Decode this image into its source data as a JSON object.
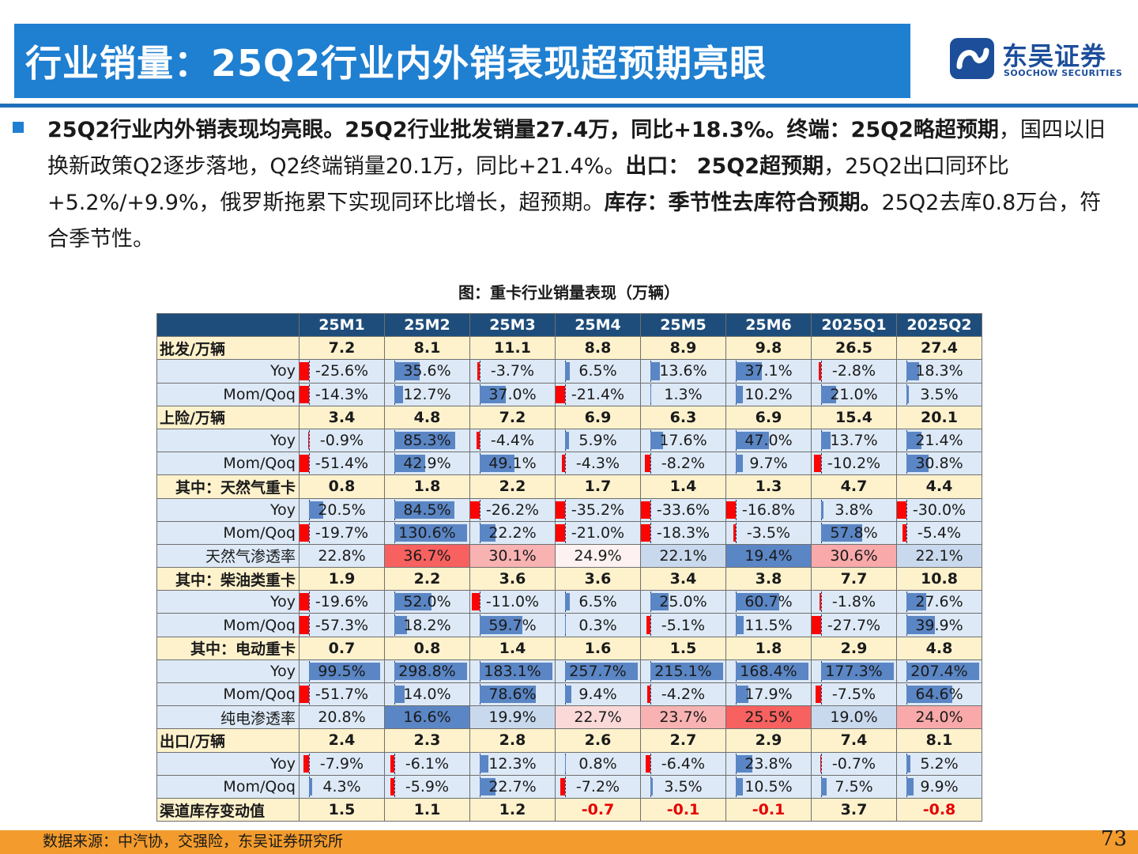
{
  "header": {
    "title": "行业销量：25Q2行业内外销表现超预期亮眼",
    "logo_cn": "东吴证券",
    "logo_en": "SOOCHOW SECURITIES",
    "accent_color": "#1f7fd1"
  },
  "summary": {
    "p1_bold": "25Q2行业内外销表现均亮眼。25Q2行业批发销量27.4万，同比+18.3%。终端：25Q2略超预期",
    "p2": "，国四以旧换新政策Q2逐步落地，Q2终端销量20.1万，同比+21.4%。",
    "p3_bold": "出口： 25Q2超预期",
    "p4": "，25Q2出口同环比+5.2%/+9.9%，俄罗斯拖累下实现同环比增长，超预期。",
    "p5_bold": "库存：季节性去库符合预期。",
    "p6": "25Q2去库0.8万台，符合季节性。"
  },
  "table": {
    "title": "图：重卡行业销量表现（万辆）",
    "columns": [
      "",
      "25M1",
      "25M2",
      "25M3",
      "25M4",
      "25M5",
      "25M6",
      "2025Q1",
      "2025Q2"
    ],
    "rows": [
      {
        "type": "cat",
        "label": "批发/万辆",
        "values": [
          "7.2",
          "8.1",
          "11.1",
          "8.8",
          "8.9",
          "9.8",
          "26.5",
          "27.4"
        ]
      },
      {
        "type": "bar",
        "label": "Yoy",
        "values": [
          "-25.6%",
          "35.6%",
          "-3.7%",
          "6.5%",
          "13.6%",
          "37.1%",
          "-2.8%",
          "18.3%"
        ]
      },
      {
        "type": "bar",
        "label": "Mom/Qoq",
        "values": [
          "-14.3%",
          "12.7%",
          "37.0%",
          "-21.4%",
          "1.3%",
          "10.2%",
          "21.0%",
          "3.5%"
        ]
      },
      {
        "type": "cat",
        "label": "上险/万辆",
        "values": [
          "3.4",
          "4.8",
          "7.2",
          "6.9",
          "6.3",
          "6.9",
          "15.4",
          "20.1"
        ]
      },
      {
        "type": "bar",
        "label": "Yoy",
        "values": [
          "-0.9%",
          "85.3%",
          "-4.4%",
          "5.9%",
          "17.6%",
          "47.0%",
          "13.7%",
          "21.4%"
        ]
      },
      {
        "type": "bar",
        "label": "Mom/Qoq",
        "values": [
          "-51.4%",
          "42.9%",
          "49.1%",
          "-4.3%",
          "-8.2%",
          "9.7%",
          "-10.2%",
          "30.8%"
        ]
      },
      {
        "type": "cat-r",
        "label": "其中：天然气重卡",
        "values": [
          "0.8",
          "1.8",
          "2.2",
          "1.7",
          "1.4",
          "1.3",
          "4.7",
          "4.4"
        ]
      },
      {
        "type": "bar",
        "label": "Yoy",
        "values": [
          "20.5%",
          "84.5%",
          "-26.2%",
          "-35.2%",
          "-33.6%",
          "-16.8%",
          "3.8%",
          "-30.0%"
        ]
      },
      {
        "type": "bar",
        "label": "Mom/Qoq",
        "values": [
          "-19.7%",
          "130.6%",
          "22.2%",
          "-21.0%",
          "-18.3%",
          "-3.5%",
          "57.8%",
          "-5.4%"
        ]
      },
      {
        "type": "pen",
        "label": "天然气渗透率",
        "values": [
          "22.8%",
          "36.7%",
          "30.1%",
          "24.9%",
          "22.1%",
          "19.4%",
          "30.6%",
          "22.1%"
        ],
        "colors": [
          "#dde9f6",
          "#f7615f",
          "#f9b2b2",
          "#fdf1f1",
          "#c9d9ed",
          "#5b86c5",
          "#f9a9a9",
          "#c9d9ed"
        ]
      },
      {
        "type": "cat-r",
        "label": "其中：柴油类重卡",
        "values": [
          "1.9",
          "2.2",
          "3.6",
          "3.6",
          "3.4",
          "3.8",
          "7.7",
          "10.8"
        ]
      },
      {
        "type": "bar",
        "label": "Yoy",
        "values": [
          "-19.6%",
          "52.0%",
          "-11.0%",
          "6.5%",
          "25.0%",
          "60.7%",
          "-1.8%",
          "27.6%"
        ]
      },
      {
        "type": "bar",
        "label": "Mom/Qoq",
        "values": [
          "-57.3%",
          "18.2%",
          "59.7%",
          "0.3%",
          "-5.1%",
          "11.5%",
          "-27.7%",
          "39.9%"
        ]
      },
      {
        "type": "cat-r",
        "label": "其中：电动重卡",
        "values": [
          "0.7",
          "0.8",
          "1.4",
          "1.6",
          "1.5",
          "1.8",
          "2.9",
          "4.8"
        ]
      },
      {
        "type": "bar",
        "label": "Yoy",
        "values": [
          "99.5%",
          "298.8%",
          "183.1%",
          "257.7%",
          "215.1%",
          "168.4%",
          "177.3%",
          "207.4%"
        ]
      },
      {
        "type": "bar",
        "label": "Mom/Qoq",
        "values": [
          "-51.7%",
          "14.0%",
          "78.6%",
          "9.4%",
          "-4.2%",
          "17.9%",
          "-7.5%",
          "64.6%"
        ]
      },
      {
        "type": "pen",
        "label": "纯电渗透率",
        "values": [
          "20.8%",
          "16.6%",
          "19.9%",
          "22.7%",
          "23.7%",
          "25.5%",
          "19.0%",
          "24.0%"
        ],
        "colors": [
          "#dde9f6",
          "#5b86c5",
          "#c9d9ed",
          "#fbd9d9",
          "#f9b2b2",
          "#f7615f",
          "#c9d9ed",
          "#f9a9a9"
        ]
      },
      {
        "type": "cat",
        "label": "出口/万辆",
        "values": [
          "2.4",
          "2.3",
          "2.8",
          "2.6",
          "2.7",
          "2.9",
          "7.4",
          "8.1"
        ]
      },
      {
        "type": "bar",
        "label": "Yoy",
        "values": [
          "-7.9%",
          "-6.1%",
          "12.3%",
          "0.8%",
          "-6.4%",
          "23.8%",
          "-0.7%",
          "5.2%"
        ]
      },
      {
        "type": "bar",
        "label": "Mom/Qoq",
        "values": [
          "4.3%",
          "-5.9%",
          "22.7%",
          "-7.2%",
          "3.5%",
          "10.5%",
          "7.5%",
          "9.9%"
        ]
      },
      {
        "type": "cat",
        "label": "渠道库存变动值",
        "values": [
          "1.5",
          "1.1",
          "1.2",
          "-0.7",
          "-0.1",
          "-0.1",
          "3.7",
          "-0.8"
        ]
      }
    ]
  },
  "footer": {
    "source": "数据来源：中汽协，交强险，东吴证券研究所",
    "page_number": "73",
    "bar_color": "#f39b2c"
  }
}
